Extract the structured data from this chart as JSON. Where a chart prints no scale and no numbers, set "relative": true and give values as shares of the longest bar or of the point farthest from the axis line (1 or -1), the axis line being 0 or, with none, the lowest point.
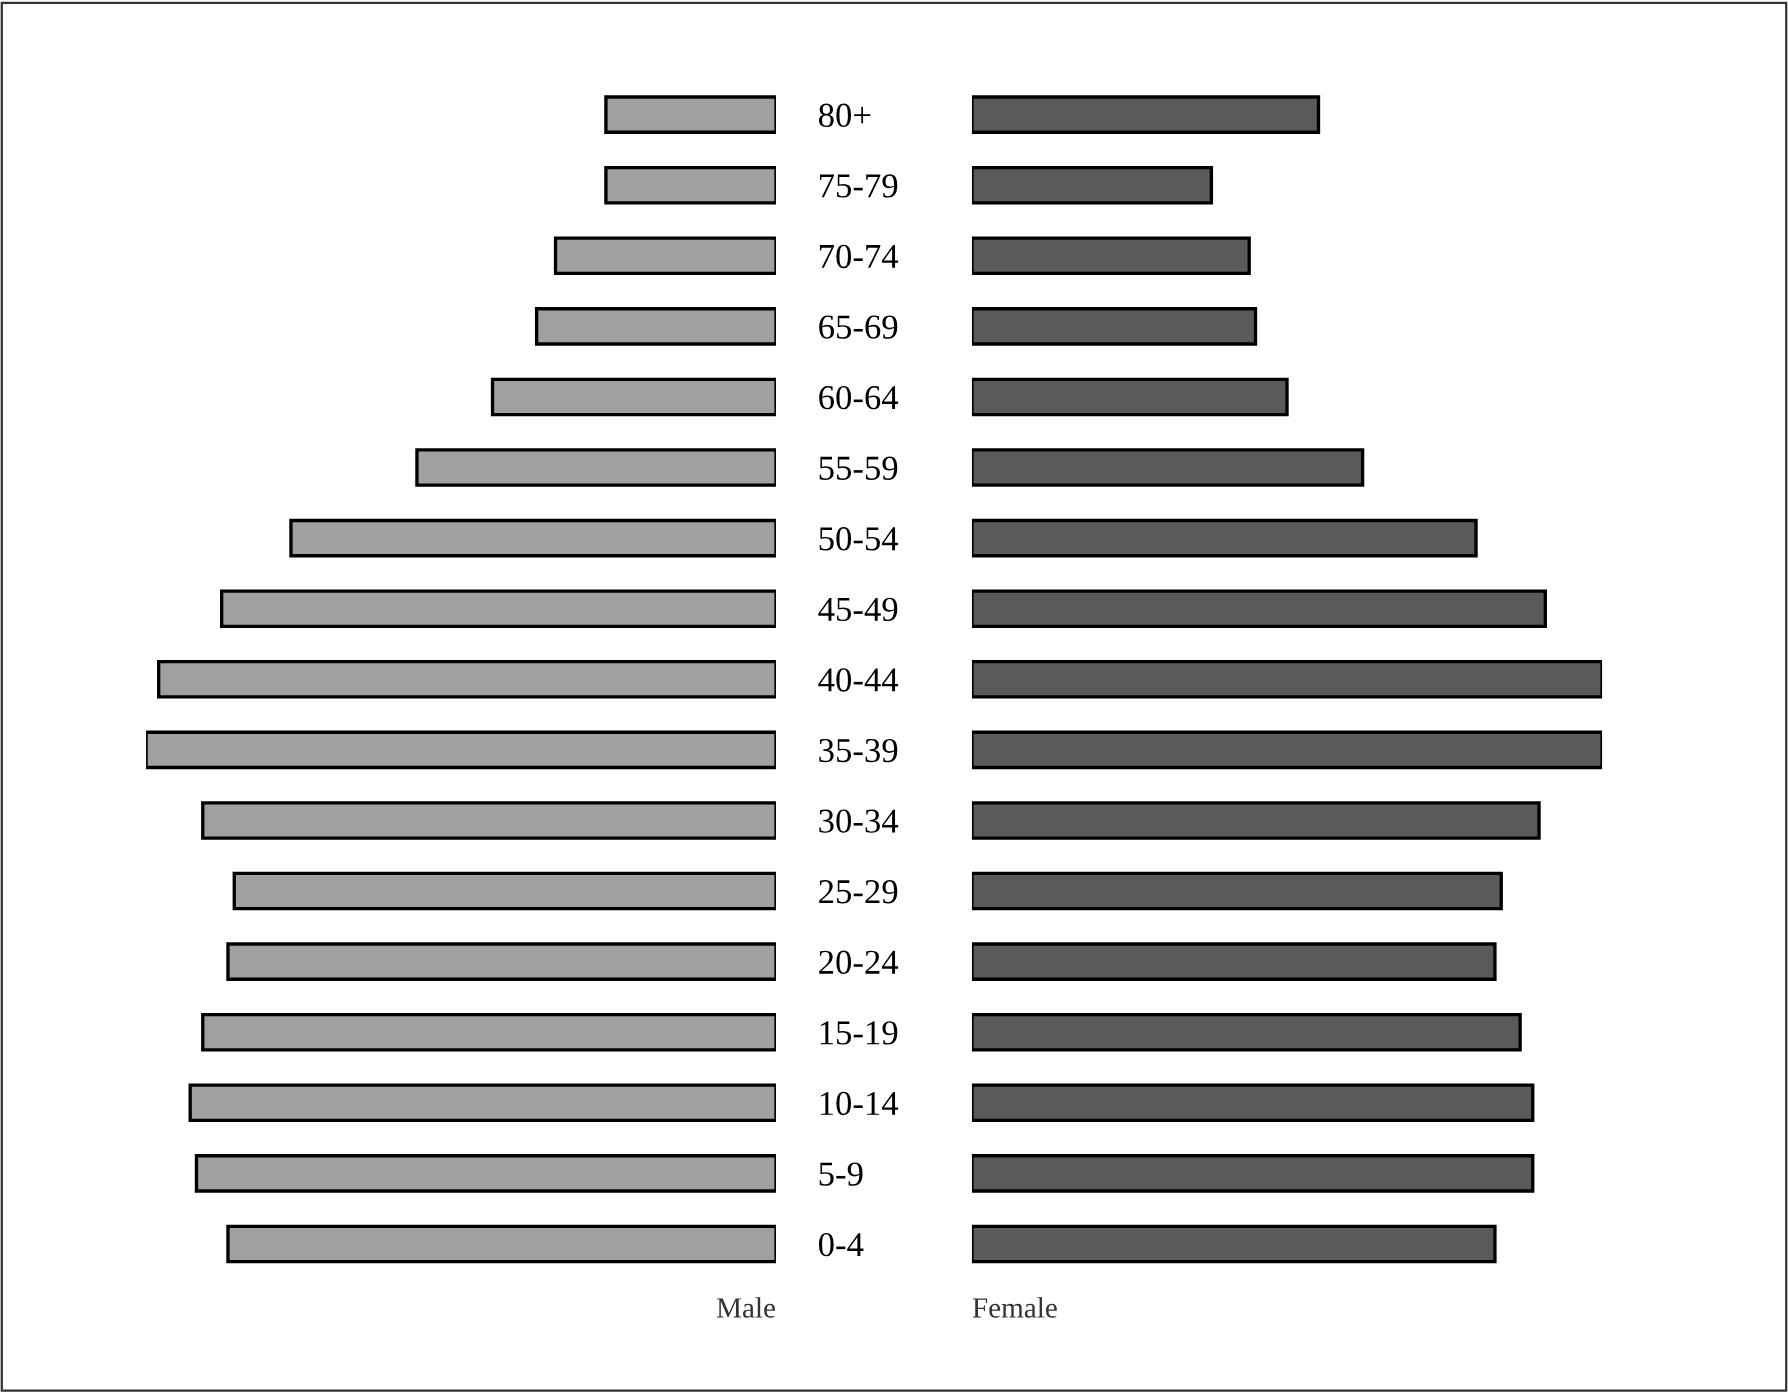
{
  "chart_data": [
    {
      "type": "bar",
      "orientation": "horizontal",
      "relative": true,
      "categories": [
        "80+",
        "75-79",
        "70-74",
        "65-69",
        "60-64",
        "55-59",
        "50-54",
        "45-49",
        "40-44",
        "35-39",
        "30-34",
        "25-29",
        "20-24",
        "15-19",
        "10-14",
        "5-9",
        "0-4"
      ],
      "series": [
        {
          "name": "Male",
          "color": "#a0a0a0",
          "values": [
            0.27,
            0.27,
            0.35,
            0.38,
            0.45,
            0.57,
            0.77,
            0.88,
            0.98,
            1.0,
            0.91,
            0.86,
            0.87,
            0.91,
            0.93,
            0.92,
            0.87
          ]
        }
      ]
    },
    {
      "type": "bar",
      "orientation": "horizontal",
      "relative": true,
      "tick_labels": false,
      "categories": [
        "80+",
        "75-79",
        "70-74",
        "65-69",
        "60-64",
        "55-59",
        "50-54",
        "45-49",
        "40-44",
        "35-39",
        "30-34",
        "25-29",
        "20-24",
        "15-19",
        "10-14",
        "5-9",
        "0-4"
      ],
      "series": [
        {
          "name": "Female",
          "color": "#5a5a5a",
          "values": [
            0.55,
            0.38,
            0.44,
            0.45,
            0.5,
            0.62,
            0.8,
            0.91,
            1.0,
            1.0,
            0.9,
            0.84,
            0.83,
            0.87,
            0.89,
            0.89,
            0.83
          ]
        }
      ]
    }
  ]
}
